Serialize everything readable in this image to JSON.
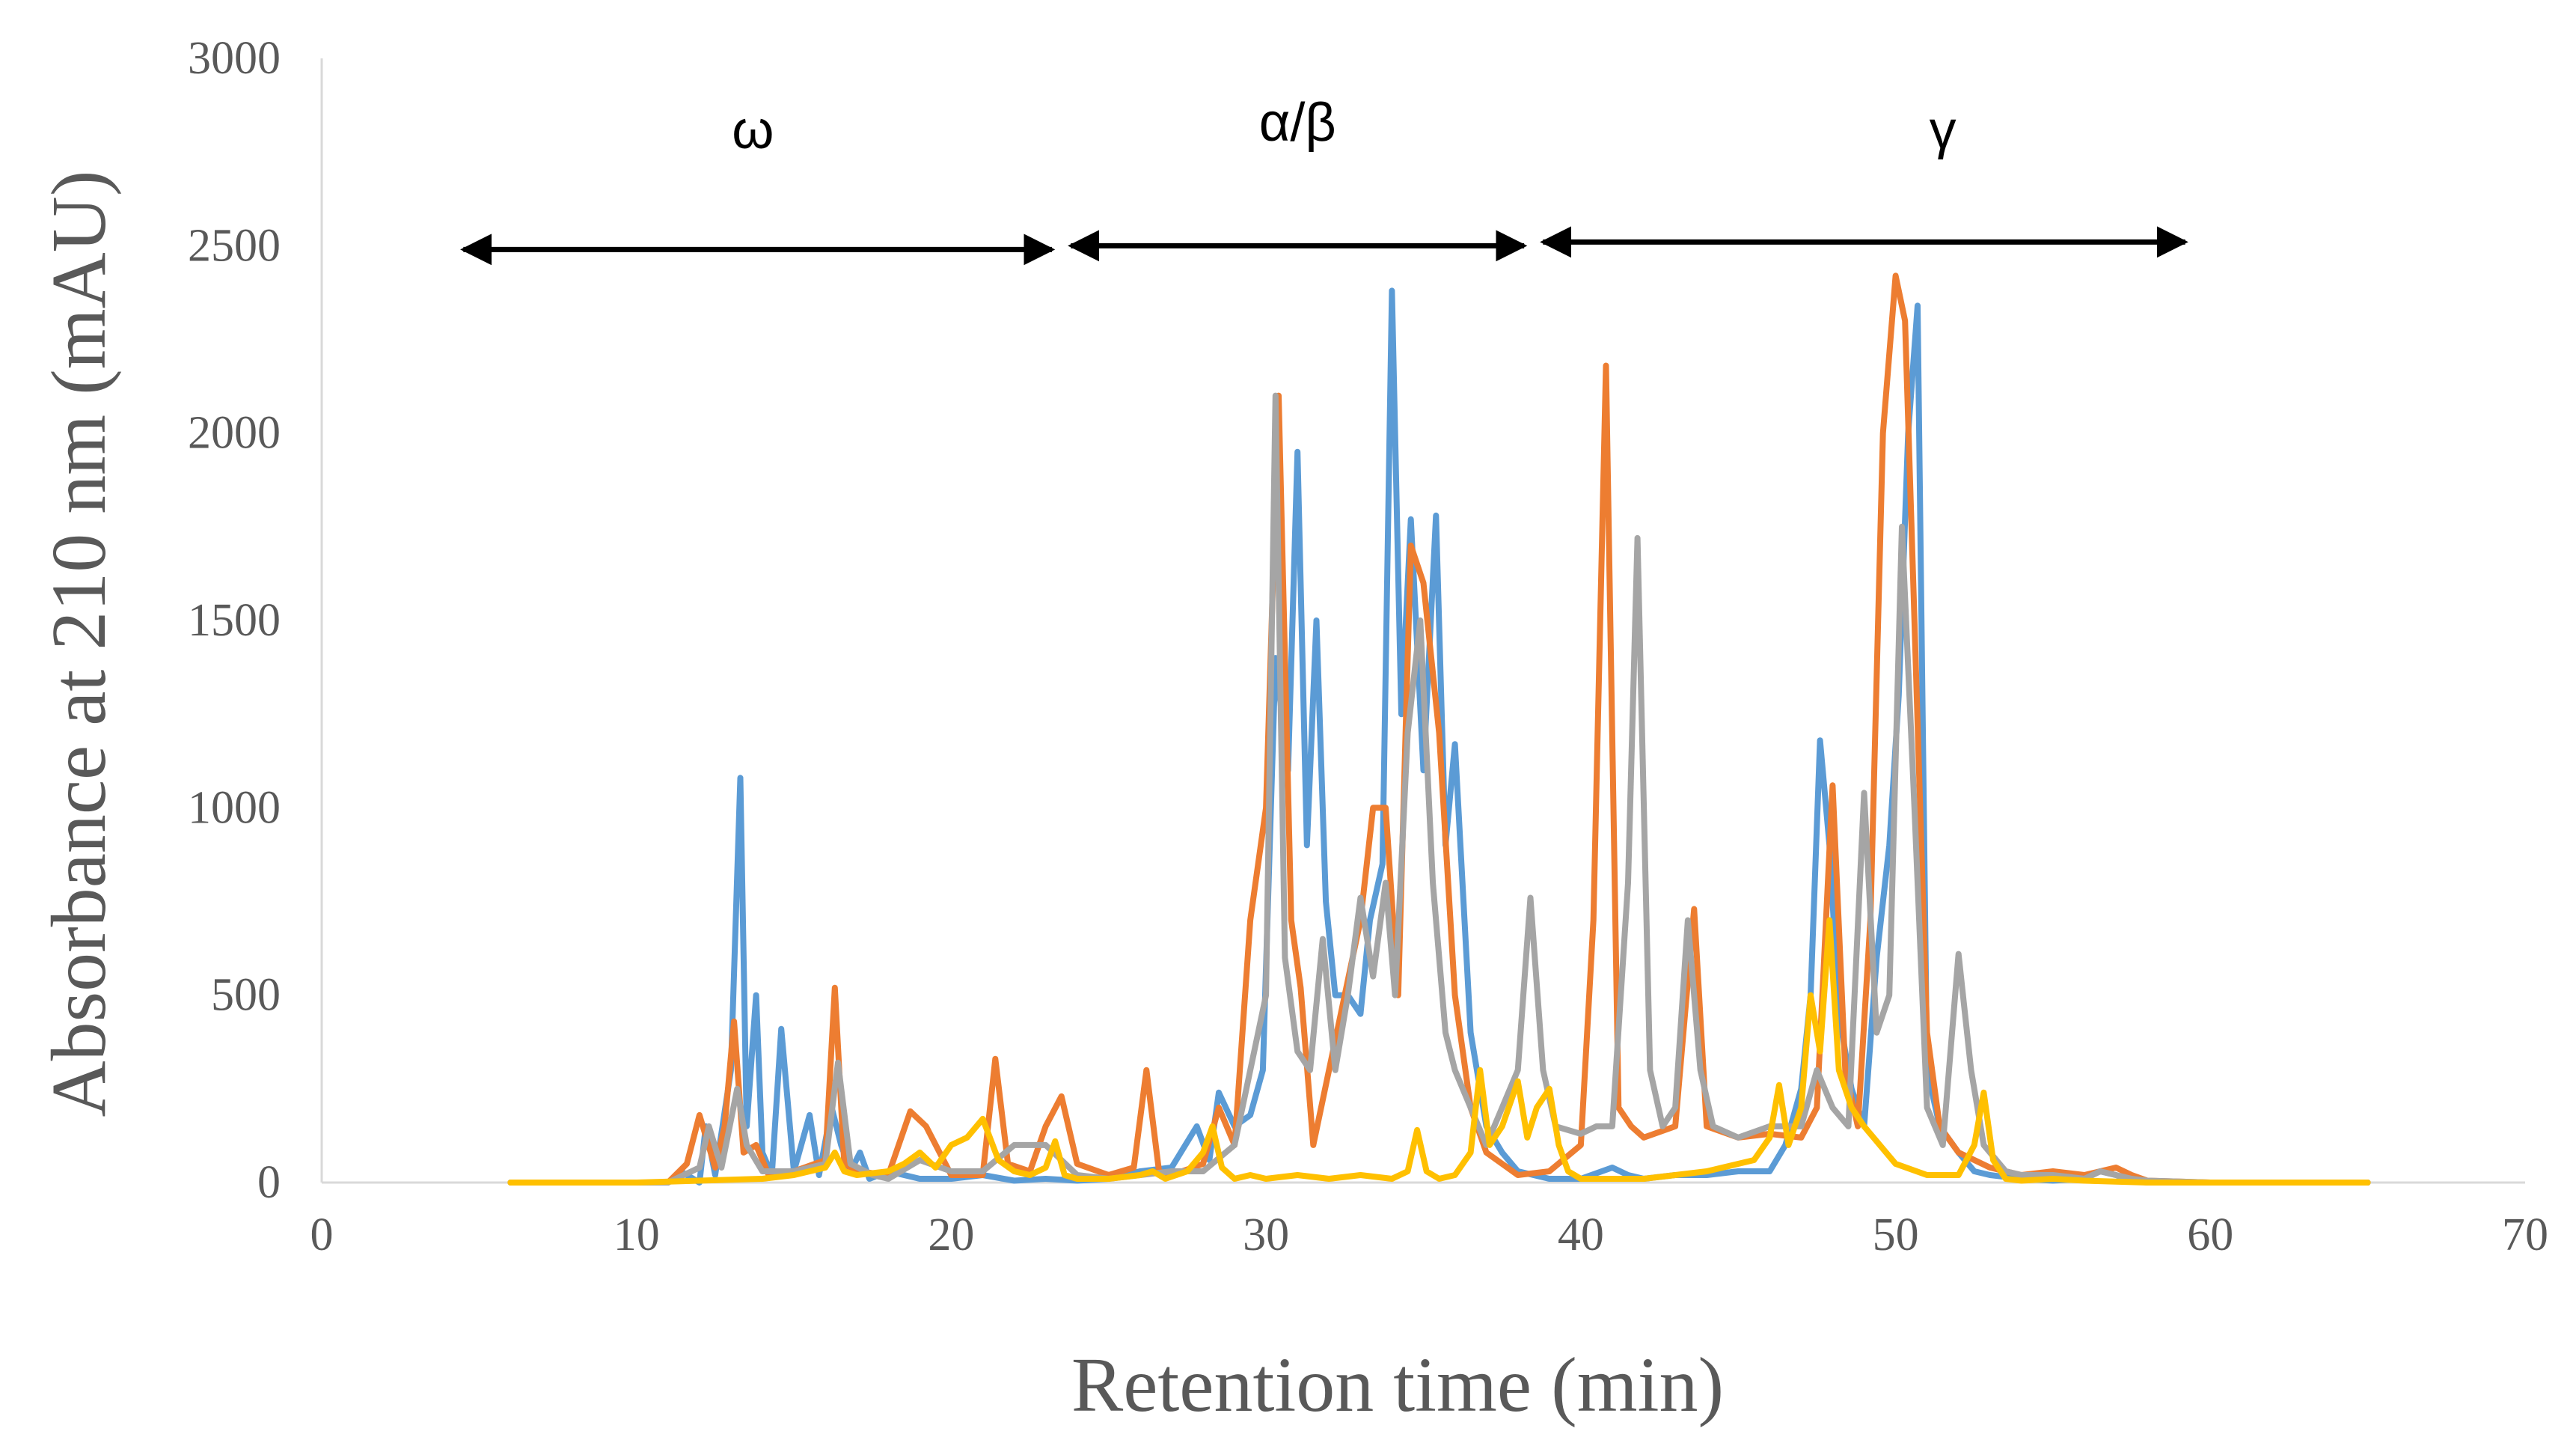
{
  "chart_data": {
    "type": "line",
    "title": "",
    "xlabel": "Retention time (min)",
    "ylabel": "Absorbance at 210 nm (mAU)",
    "xlim": [
      0,
      70
    ],
    "ylim": [
      0,
      3000
    ],
    "xticks": [
      0,
      10,
      20,
      30,
      40,
      50,
      60,
      70
    ],
    "yticks": [
      0,
      500,
      1000,
      1500,
      2000,
      2500,
      3000
    ],
    "grid": false,
    "legend": "none",
    "annotations": [
      {
        "label": "ω",
        "x_start": 4.5,
        "x_end": 23.2,
        "y": 2490,
        "label_x": 13.7,
        "label_y": 2760
      },
      {
        "label": "α/β",
        "x_start": 23.8,
        "x_end": 38.2,
        "y": 2500,
        "label_x": 31.0,
        "label_y": 2780
      },
      {
        "label": "γ",
        "x_start": 38.8,
        "x_end": 59.2,
        "y": 2510,
        "label_x": 51.5,
        "label_y": 2760
      }
    ],
    "series": [
      {
        "name": "blue",
        "color": "#5B9BD5",
        "x": [
          6,
          11,
          11.4,
          12,
          12.2,
          12.5,
          13,
          13.3,
          13.5,
          13.8,
          14,
          14.3,
          14.6,
          15,
          15.5,
          15.8,
          16.2,
          16.5,
          16.8,
          17.1,
          17.4,
          18,
          19,
          20,
          21,
          22,
          23,
          24,
          25,
          26,
          27,
          27.8,
          28.2,
          28.5,
          29,
          29.5,
          29.9,
          30.3,
          30.7,
          31,
          31.3,
          31.6,
          31.9,
          32.2,
          32.6,
          33,
          33.3,
          33.7,
          34,
          34.3,
          34.6,
          35,
          35.4,
          35.7,
          36,
          36.5,
          37,
          37.5,
          38,
          39,
          40,
          41,
          41.5,
          42,
          43,
          44,
          45,
          46,
          46.5,
          47,
          47.3,
          47.6,
          47.9,
          48.2,
          48.6,
          49,
          49.4,
          49.8,
          50.1,
          50.4,
          50.7,
          51,
          51.4,
          52,
          52.5,
          53,
          54,
          55,
          56,
          56.5,
          57,
          57.5,
          58,
          60,
          62,
          65
        ],
        "y": [
          0,
          0,
          30,
          0,
          150,
          20,
          300,
          1080,
          150,
          500,
          80,
          20,
          410,
          30,
          180,
          20,
          200,
          100,
          30,
          80,
          10,
          30,
          10,
          10,
          20,
          5,
          10,
          5,
          10,
          30,
          40,
          150,
          60,
          240,
          150,
          180,
          300,
          1400,
          1100,
          1950,
          900,
          1500,
          750,
          500,
          500,
          450,
          700,
          850,
          2380,
          1250,
          1770,
          1100,
          1780,
          900,
          1170,
          400,
          150,
          80,
          30,
          10,
          10,
          40,
          20,
          10,
          20,
          20,
          30,
          30,
          100,
          250,
          500,
          1180,
          900,
          450,
          250,
          150,
          600,
          900,
          1300,
          2000,
          2340,
          300,
          150,
          80,
          30,
          20,
          10,
          5,
          10,
          30,
          20,
          5,
          0,
          0,
          0,
          0
        ]
      },
      {
        "name": "orange",
        "color": "#ED7D31",
        "x": [
          6,
          11,
          11.6,
          12,
          12.5,
          12.8,
          13.1,
          13.4,
          13.8,
          14.2,
          15,
          16,
          16.3,
          16.6,
          17,
          18,
          18.7,
          19.2,
          20,
          21,
          21.4,
          21.8,
          22.5,
          23,
          23.5,
          24,
          25,
          25.8,
          26.2,
          26.6,
          27,
          28,
          28.5,
          29,
          29.5,
          30,
          30.4,
          30.8,
          31.1,
          31.5,
          32,
          32.5,
          33,
          33.4,
          33.8,
          34.2,
          34.6,
          35,
          35.5,
          36,
          36.5,
          37,
          38,
          39,
          40,
          40.4,
          40.8,
          41.2,
          41.6,
          42,
          43,
          43.6,
          44,
          45,
          46,
          47,
          47.5,
          48,
          48.4,
          48.8,
          49.2,
          49.6,
          50,
          50.3,
          50.6,
          51,
          51.4,
          52,
          53,
          54,
          55,
          56,
          57,
          57.5,
          58,
          60,
          62,
          65
        ],
        "y": [
          0,
          0,
          50,
          180,
          40,
          150,
          430,
          80,
          100,
          20,
          30,
          60,
          520,
          50,
          30,
          20,
          190,
          150,
          20,
          20,
          330,
          50,
          30,
          150,
          230,
          50,
          20,
          40,
          300,
          30,
          20,
          50,
          200,
          100,
          700,
          1000,
          2100,
          700,
          520,
          100,
          300,
          500,
          700,
          1000,
          1000,
          500,
          1700,
          1600,
          1200,
          500,
          200,
          80,
          20,
          30,
          100,
          700,
          2180,
          200,
          150,
          120,
          150,
          730,
          150,
          120,
          130,
          120,
          200,
          1060,
          300,
          150,
          700,
          2000,
          2420,
          2300,
          1500,
          400,
          150,
          80,
          40,
          20,
          30,
          20,
          40,
          20,
          5,
          0,
          0,
          0
        ]
      },
      {
        "name": "gray",
        "color": "#A5A5A5",
        "x": [
          6,
          11,
          12,
          12.3,
          12.7,
          13.2,
          13.5,
          14,
          15,
          16,
          16.4,
          16.8,
          17.5,
          18,
          19,
          20,
          21,
          22,
          23,
          24,
          25,
          26,
          27,
          28,
          29,
          29.5,
          30,
          30.3,
          30.6,
          31,
          31.4,
          31.8,
          32.2,
          32.6,
          33,
          33.4,
          33.8,
          34.1,
          34.5,
          34.9,
          35.3,
          35.7,
          36,
          36.5,
          37,
          37.5,
          38,
          38.4,
          38.8,
          39.2,
          40,
          40.5,
          41,
          41.5,
          41.8,
          42.2,
          42.6,
          43,
          43.4,
          43.8,
          44.2,
          45,
          46,
          47,
          47.5,
          48,
          48.5,
          49,
          49.4,
          49.8,
          50.2,
          50.6,
          51,
          51.5,
          52,
          52.4,
          52.8,
          53.5,
          54,
          55,
          56,
          56.5,
          57,
          57.5,
          58,
          60,
          62,
          65
        ],
        "y": [
          0,
          0,
          40,
          150,
          40,
          250,
          100,
          30,
          30,
          50,
          320,
          50,
          20,
          10,
          60,
          30,
          30,
          100,
          100,
          20,
          10,
          20,
          30,
          30,
          100,
          300,
          500,
          2100,
          600,
          350,
          300,
          650,
          300,
          500,
          760,
          550,
          800,
          500,
          1200,
          1500,
          800,
          400,
          300,
          200,
          100,
          200,
          300,
          760,
          300,
          150,
          130,
          150,
          150,
          800,
          1720,
          300,
          150,
          200,
          700,
          300,
          150,
          120,
          150,
          150,
          300,
          200,
          150,
          1040,
          400,
          500,
          1750,
          1000,
          200,
          100,
          610,
          300,
          100,
          30,
          20,
          20,
          10,
          30,
          20,
          10,
          5,
          0,
          0,
          0
        ]
      },
      {
        "name": "yellow",
        "color": "#FFC000",
        "x": [
          6,
          10,
          12,
          14,
          15,
          16,
          16.3,
          16.6,
          17,
          18,
          18.5,
          19,
          19.5,
          20,
          20.5,
          21,
          21.5,
          22,
          22.5,
          23,
          23.3,
          23.6,
          24,
          25,
          26,
          26.4,
          26.8,
          27.5,
          28,
          28.3,
          28.6,
          29,
          29.5,
          30,
          31,
          32,
          33,
          34,
          34.5,
          34.8,
          35.1,
          35.5,
          36,
          36.5,
          36.8,
          37.1,
          37.5,
          38,
          38.3,
          38.6,
          39,
          39.3,
          39.6,
          40,
          40.5,
          41,
          42,
          43,
          44,
          45,
          45.5,
          46,
          46.3,
          46.6,
          47,
          47.3,
          47.6,
          47.9,
          48.2,
          48.6,
          49,
          49.5,
          50,
          51,
          52,
          52.5,
          52.8,
          53.1,
          53.5,
          54,
          55,
          56,
          58,
          60,
          62,
          65
        ],
        "y": [
          0,
          0,
          5,
          10,
          20,
          40,
          80,
          30,
          20,
          30,
          50,
          80,
          40,
          100,
          120,
          170,
          60,
          30,
          20,
          40,
          110,
          20,
          10,
          10,
          20,
          30,
          10,
          30,
          80,
          150,
          40,
          10,
          20,
          10,
          20,
          10,
          20,
          10,
          30,
          140,
          30,
          10,
          20,
          80,
          300,
          100,
          150,
          270,
          120,
          200,
          250,
          100,
          30,
          10,
          10,
          10,
          10,
          20,
          30,
          50,
          60,
          120,
          260,
          100,
          200,
          500,
          350,
          700,
          300,
          200,
          150,
          100,
          50,
          20,
          20,
          100,
          240,
          60,
          10,
          5,
          10,
          5,
          0,
          0,
          0,
          0
        ]
      }
    ]
  }
}
